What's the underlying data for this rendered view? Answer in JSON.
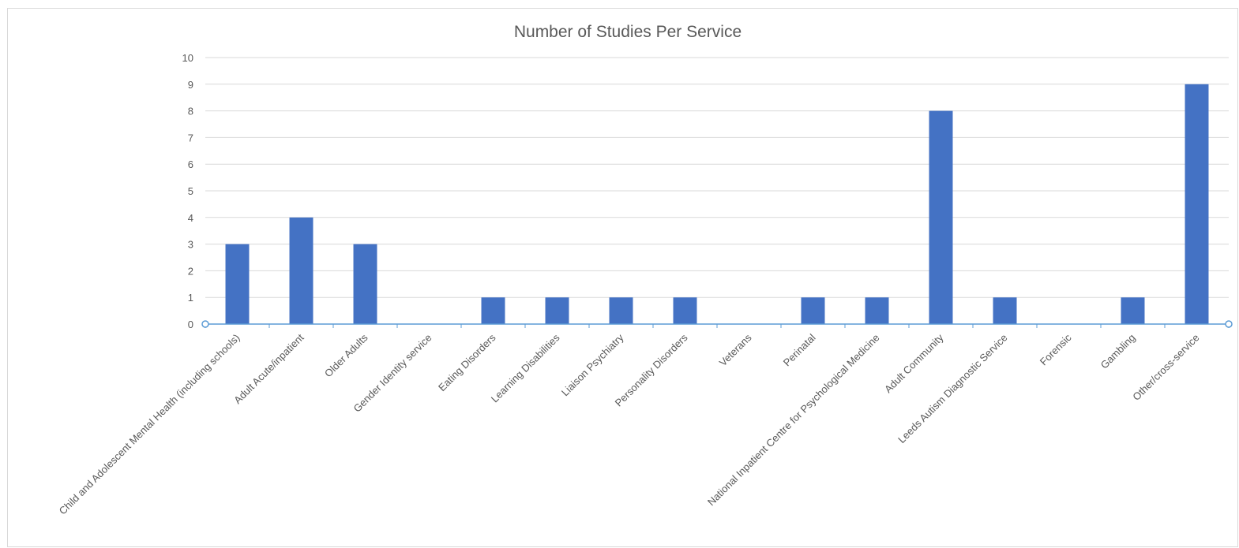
{
  "chart_data": {
    "type": "bar",
    "title": "Number of Studies Per Service",
    "categories": [
      "Child and Adolescent Mental Health (including schools)",
      "Adult Acute/inpatient",
      "Older Adults",
      "Gender Identity service",
      "Eating Disorders",
      "Learning Disabilities",
      "Liaison Psychiatry",
      "Personality Disorders",
      "Veterans",
      "Perinatal",
      "National Inpatient Centre for Psychological Medicine",
      "Adult Community",
      "Leeds Autism Diagnostic Service",
      "Forensic",
      "Gambling",
      "Other/cross-service"
    ],
    "values": [
      3,
      4,
      3,
      0,
      1,
      1,
      1,
      1,
      0,
      1,
      1,
      8,
      1,
      0,
      1,
      9
    ],
    "ylim": [
      0,
      10
    ],
    "yticks": [
      "0",
      "1",
      "2",
      "3",
      "4",
      "5",
      "6",
      "7",
      "8",
      "9",
      "10"
    ],
    "grid": true,
    "bar_color": "#4472c4",
    "axis_color": "#5b9bd5",
    "grid_color": "#d9d9d9"
  }
}
